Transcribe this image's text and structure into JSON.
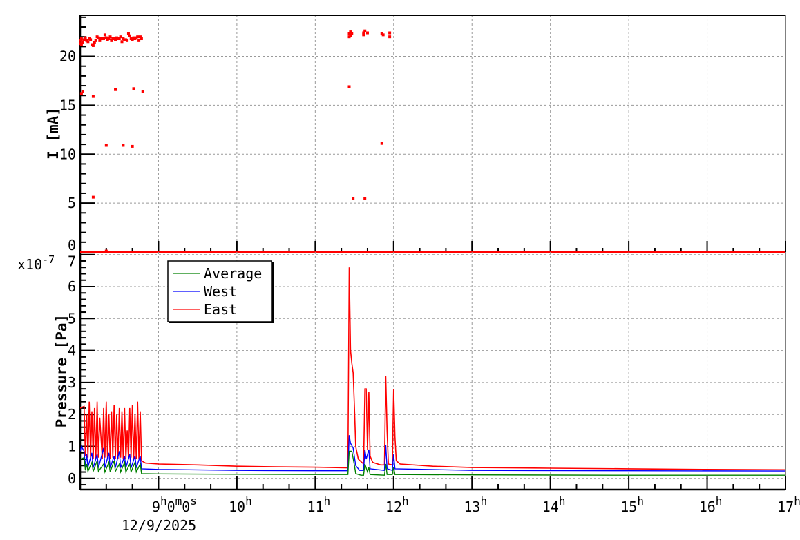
{
  "chart_data": [
    {
      "type": "scatter",
      "ylabel": "I [mA]",
      "ylim": [
        0,
        24.2
      ],
      "xlim": [
        "8:00",
        "17:00"
      ],
      "y_ticks": [
        "0",
        "5",
        "10",
        "15",
        "20"
      ],
      "grid": true,
      "color": "#ff0000",
      "baseline_line": {
        "value": 0,
        "from": "8:00",
        "to": "17:00"
      },
      "points": [
        [
          "8:00",
          21.3
        ],
        [
          "8:00",
          21.6
        ],
        [
          "8:01",
          21.2
        ],
        [
          "8:01",
          21.8
        ],
        [
          "8:02",
          21.5
        ],
        [
          "8:02",
          21.4
        ],
        [
          "8:03",
          21.7
        ],
        [
          "8:04",
          21.9
        ],
        [
          "8:05",
          21.6
        ],
        [
          "8:06",
          21.5
        ],
        [
          "8:07",
          21.8
        ],
        [
          "8:08",
          21.7
        ],
        [
          "8:09",
          21.2
        ],
        [
          "8:10",
          21.1
        ],
        [
          "8:11",
          21.4
        ],
        [
          "8:12",
          21.6
        ],
        [
          "8:13",
          22.0
        ],
        [
          "8:14",
          21.9
        ],
        [
          "8:15",
          21.6
        ],
        [
          "8:16",
          21.8
        ],
        [
          "8:17",
          21.8
        ],
        [
          "8:18",
          21.8
        ],
        [
          "8:19",
          22.2
        ],
        [
          "8:20",
          21.9
        ],
        [
          "8:21",
          21.7
        ],
        [
          "8:22",
          21.8
        ],
        [
          "8:23",
          22.0
        ],
        [
          "8:24",
          21.6
        ],
        [
          "8:25",
          21.8
        ],
        [
          "8:26",
          21.8
        ],
        [
          "8:27",
          21.7
        ],
        [
          "8:28",
          21.9
        ],
        [
          "8:29",
          21.8
        ],
        [
          "8:30",
          21.8
        ],
        [
          "8:31",
          22.0
        ],
        [
          "8:32",
          21.5
        ],
        [
          "8:33",
          21.8
        ],
        [
          "8:34",
          21.7
        ],
        [
          "8:35",
          21.7
        ],
        [
          "8:36",
          21.6
        ],
        [
          "8:37",
          22.3
        ],
        [
          "8:38",
          22.1
        ],
        [
          "8:39",
          21.8
        ],
        [
          "8:40",
          21.7
        ],
        [
          "8:41",
          21.9
        ],
        [
          "8:42",
          21.8
        ],
        [
          "8:43",
          21.9
        ],
        [
          "8:44",
          22.0
        ],
        [
          "8:45",
          21.6
        ],
        [
          "8:46",
          22.0
        ],
        [
          "8:47",
          21.8
        ],
        [
          "8:01",
          16.2
        ],
        [
          "8:02",
          16.4
        ],
        [
          "8:10",
          15.9
        ],
        [
          "8:27",
          16.6
        ],
        [
          "8:41",
          16.7
        ],
        [
          "8:48",
          16.4
        ],
        [
          "8:20",
          10.9
        ],
        [
          "8:33",
          10.9
        ],
        [
          "8:40",
          10.8
        ],
        [
          "8:10",
          5.6
        ],
        [
          "8:20",
          0.1
        ],
        [
          "11:26",
          22.3
        ],
        [
          "11:26",
          22.0
        ],
        [
          "11:27",
          22.5
        ],
        [
          "11:27",
          22.1
        ],
        [
          "11:28",
          22.3
        ],
        [
          "11:37",
          22.4
        ],
        [
          "11:37",
          22.2
        ],
        [
          "11:38",
          22.6
        ],
        [
          "11:40",
          22.4
        ],
        [
          "11:51",
          22.3
        ],
        [
          "11:52",
          22.2
        ],
        [
          "11:57",
          22.0
        ],
        [
          "11:57",
          22.4
        ],
        [
          "11:26",
          16.9
        ],
        [
          "11:29",
          5.5
        ],
        [
          "11:38",
          5.5
        ],
        [
          "11:51",
          11.1
        ]
      ]
    },
    {
      "type": "line",
      "ylabel": "Pressure [Pa]",
      "y_multiplier": "x10",
      "y_multiplier_exp": "-7",
      "ylim": [
        -0.35,
        7.08
      ],
      "xlim": [
        "8:00",
        "17:00"
      ],
      "y_ticks": [
        "0",
        "1",
        "2",
        "3",
        "4",
        "5",
        "6",
        "7"
      ],
      "x_ticks": [
        {
          "main": "9",
          "sup": "h",
          "extra": "0",
          "sup2": "m",
          "extra2": "0",
          "sup3": "s"
        },
        {
          "main": "10",
          "sup": "h"
        },
        {
          "main": "11",
          "sup": "h"
        },
        {
          "main": "12",
          "sup": "h"
        },
        {
          "main": "13",
          "sup": "h"
        },
        {
          "main": "14",
          "sup": "h"
        },
        {
          "main": "15",
          "sup": "h"
        },
        {
          "main": "16",
          "sup": "h"
        },
        {
          "main": "17",
          "sup": "h"
        }
      ],
      "x_date": "12/9/2025",
      "grid": true,
      "legend_position": "top-left",
      "series": [
        {
          "name": "Average",
          "color": "#008000",
          "points": [
            [
              "8:00",
              0.6
            ],
            [
              "8:03",
              0.65
            ],
            [
              "8:04",
              0.25
            ],
            [
              "8:05",
              0.45
            ],
            [
              "8:06",
              0.22
            ],
            [
              "8:09",
              0.5
            ],
            [
              "8:10",
              0.22
            ],
            [
              "8:13",
              0.55
            ],
            [
              "8:14",
              0.22
            ],
            [
              "8:18",
              0.45
            ],
            [
              "8:19",
              0.2
            ],
            [
              "8:22",
              0.5
            ],
            [
              "8:23",
              0.2
            ],
            [
              "8:26",
              0.55
            ],
            [
              "8:27",
              0.22
            ],
            [
              "8:30",
              0.45
            ],
            [
              "8:31",
              0.2
            ],
            [
              "8:34",
              0.5
            ],
            [
              "8:35",
              0.2
            ],
            [
              "8:38",
              0.45
            ],
            [
              "8:39",
              0.2
            ],
            [
              "8:42",
              0.5
            ],
            [
              "8:43",
              0.2
            ],
            [
              "8:46",
              0.45
            ],
            [
              "8:47",
              0.15
            ],
            [
              "9:00",
              0.14
            ],
            [
              "10:00",
              0.13
            ],
            [
              "11:00",
              0.12
            ],
            [
              "11:25",
              0.12
            ],
            [
              "11:26",
              0.85
            ],
            [
              "11:28",
              0.85
            ],
            [
              "11:30",
              0.4
            ],
            [
              "11:31",
              0.15
            ],
            [
              "11:35",
              0.1
            ],
            [
              "11:37",
              0.1
            ],
            [
              "11:38",
              0.45
            ],
            [
              "11:40",
              0.2
            ],
            [
              "11:41",
              0.35
            ],
            [
              "11:42",
              0.12
            ],
            [
              "11:53",
              0.1
            ],
            [
              "11:54",
              0.45
            ],
            [
              "11:55",
              0.12
            ],
            [
              "11:59",
              0.12
            ],
            [
              "12:00",
              0.35
            ],
            [
              "12:01",
              0.12
            ],
            [
              "13:00",
              0.11
            ],
            [
              "15:00",
              0.1
            ],
            [
              "17:00",
              0.1
            ]
          ]
        },
        {
          "name": "West",
          "color": "#0000ff",
          "points": [
            [
              "8:00",
              0.85
            ],
            [
              "8:01",
              1.0
            ],
            [
              "8:03",
              0.85
            ],
            [
              "8:04",
              0.35
            ],
            [
              "8:05",
              0.75
            ],
            [
              "8:06",
              0.35
            ],
            [
              "8:09",
              0.8
            ],
            [
              "8:10",
              0.33
            ],
            [
              "8:13",
              0.75
            ],
            [
              "8:14",
              0.33
            ],
            [
              "8:18",
              0.95
            ],
            [
              "8:19",
              0.33
            ],
            [
              "8:22",
              0.8
            ],
            [
              "8:23",
              0.33
            ],
            [
              "8:26",
              0.7
            ],
            [
              "8:27",
              0.33
            ],
            [
              "8:30",
              0.85
            ],
            [
              "8:31",
              0.33
            ],
            [
              "8:34",
              0.7
            ],
            [
              "8:35",
              0.33
            ],
            [
              "8:38",
              0.75
            ],
            [
              "8:39",
              0.33
            ],
            [
              "8:42",
              0.7
            ],
            [
              "8:43",
              0.33
            ],
            [
              "8:46",
              0.7
            ],
            [
              "8:47",
              0.3
            ],
            [
              "9:00",
              0.28
            ],
            [
              "10:00",
              0.25
            ],
            [
              "11:00",
              0.24
            ],
            [
              "11:25",
              0.24
            ],
            [
              "11:26",
              1.35
            ],
            [
              "11:27",
              1.1
            ],
            [
              "11:29",
              0.95
            ],
            [
              "11:31",
              0.4
            ],
            [
              "11:34",
              0.25
            ],
            [
              "11:37",
              0.25
            ],
            [
              "11:38",
              0.9
            ],
            [
              "11:39",
              0.6
            ],
            [
              "11:41",
              0.9
            ],
            [
              "11:42",
              0.3
            ],
            [
              "11:53",
              0.25
            ],
            [
              "11:54",
              1.05
            ],
            [
              "11:55",
              0.3
            ],
            [
              "11:59",
              0.25
            ],
            [
              "12:00",
              0.75
            ],
            [
              "12:01",
              0.3
            ],
            [
              "13:00",
              0.25
            ],
            [
              "15:00",
              0.24
            ],
            [
              "17:00",
              0.23
            ]
          ]
        },
        {
          "name": "East",
          "color": "#ff0000",
          "points": [
            [
              "8:00",
              2.2
            ],
            [
              "8:03",
              2.25
            ],
            [
              "8:04",
              0.7
            ],
            [
              "8:05",
              2.0
            ],
            [
              "8:06",
              0.65
            ],
            [
              "8:07",
              2.4
            ],
            [
              "8:08",
              0.65
            ],
            [
              "8:09",
              2.1
            ],
            [
              "8:10",
              0.6
            ],
            [
              "8:11",
              2.2
            ],
            [
              "8:12",
              0.6
            ],
            [
              "8:13",
              2.4
            ],
            [
              "8:14",
              0.65
            ],
            [
              "8:15",
              1.9
            ],
            [
              "8:17",
              0.6
            ],
            [
              "8:18",
              2.2
            ],
            [
              "8:19",
              0.65
            ],
            [
              "8:20",
              2.4
            ],
            [
              "8:21",
              0.6
            ],
            [
              "8:22",
              2.0
            ],
            [
              "8:23",
              0.6
            ],
            [
              "8:24",
              2.1
            ],
            [
              "8:25",
              0.65
            ],
            [
              "8:26",
              2.3
            ],
            [
              "8:27",
              0.6
            ],
            [
              "8:28",
              2.0
            ],
            [
              "8:29",
              0.6
            ],
            [
              "8:30",
              2.2
            ],
            [
              "8:31",
              0.65
            ],
            [
              "8:32",
              2.1
            ],
            [
              "8:33",
              0.6
            ],
            [
              "8:34",
              2.2
            ],
            [
              "8:35",
              0.6
            ],
            [
              "8:36",
              1.5
            ],
            [
              "8:37",
              0.6
            ],
            [
              "8:38",
              2.2
            ],
            [
              "8:39",
              0.65
            ],
            [
              "8:40",
              2.3
            ],
            [
              "8:41",
              0.6
            ],
            [
              "8:42",
              2.0
            ],
            [
              "8:43",
              0.6
            ],
            [
              "8:44",
              2.4
            ],
            [
              "8:45",
              0.6
            ],
            [
              "8:46",
              2.1
            ],
            [
              "8:47",
              0.55
            ],
            [
              "8:50",
              0.48
            ],
            [
              "9:00",
              0.45
            ],
            [
              "9:30",
              0.42
            ],
            [
              "10:00",
              0.38
            ],
            [
              "10:30",
              0.36
            ],
            [
              "11:00",
              0.35
            ],
            [
              "11:25",
              0.33
            ],
            [
              "11:26",
              6.6
            ],
            [
              "11:27",
              4.0
            ],
            [
              "11:28",
              3.6
            ],
            [
              "11:29",
              3.3
            ],
            [
              "11:30",
              2.2
            ],
            [
              "11:31",
              1.0
            ],
            [
              "11:33",
              0.6
            ],
            [
              "11:37",
              0.45
            ],
            [
              "11:38",
              2.8
            ],
            [
              "11:39",
              2.8
            ],
            [
              "11:40",
              0.9
            ],
            [
              "11:41",
              2.7
            ],
            [
              "11:42",
              0.7
            ],
            [
              "11:44",
              0.5
            ],
            [
              "11:50",
              0.42
            ],
            [
              "11:53",
              0.42
            ],
            [
              "11:54",
              3.2
            ],
            [
              "11:55",
              1.5
            ],
            [
              "11:56",
              0.45
            ],
            [
              "11:59",
              0.42
            ],
            [
              "12:00",
              2.8
            ],
            [
              "12:01",
              1.3
            ],
            [
              "12:02",
              0.55
            ],
            [
              "12:05",
              0.45
            ],
            [
              "12:30",
              0.38
            ],
            [
              "13:00",
              0.34
            ],
            [
              "14:00",
              0.32
            ],
            [
              "15:00",
              0.3
            ],
            [
              "16:00",
              0.28
            ],
            [
              "17:00",
              0.27
            ]
          ]
        }
      ]
    }
  ]
}
